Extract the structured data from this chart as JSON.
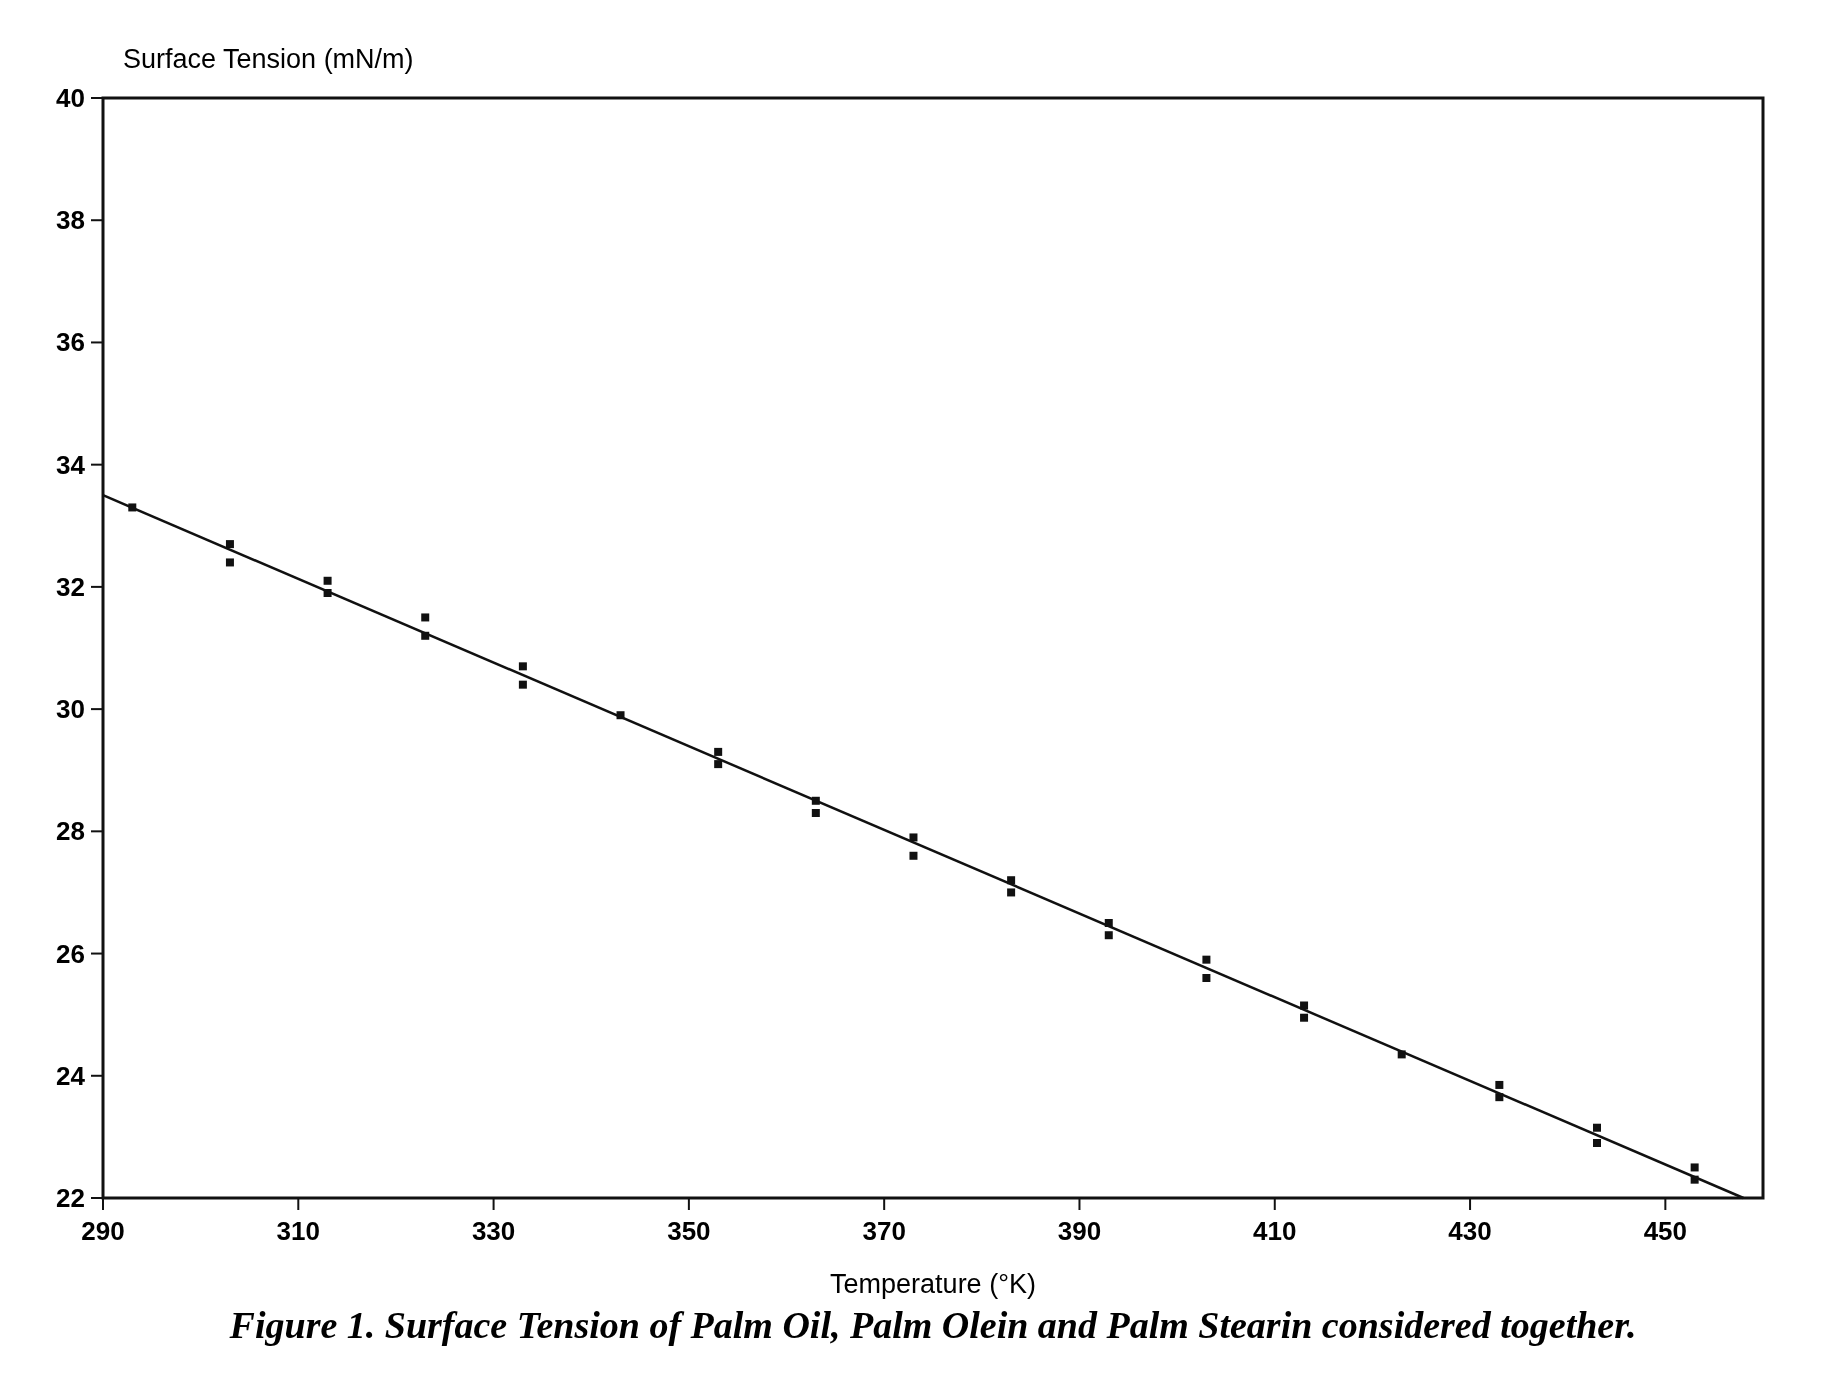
{
  "chart_data": {
    "type": "scatter",
    "xlabel": "Temperature (°K)",
    "ylabel": "Surface Tension (mN/m)",
    "annotations": [
      "Figure 1. Surface Tension of Palm Oil, Palm Olein and Palm Stearin considered together."
    ],
    "xlim": [
      290,
      460
    ],
    "xticks": [
      290,
      310,
      330,
      350,
      370,
      390,
      410,
      430,
      450
    ],
    "ylim": [
      22,
      40
    ],
    "yticks": [
      22,
      24,
      26,
      28,
      30,
      32,
      34,
      36,
      38,
      40
    ],
    "grid": false,
    "series": [
      {
        "color": "#111111",
        "marker": "square",
        "x": [
          293,
          303,
          303,
          313,
          313,
          323,
          323,
          333,
          333,
          343,
          353,
          353,
          363,
          363,
          373,
          373,
          383,
          383,
          393,
          393,
          403,
          403,
          413,
          413,
          423,
          433,
          433,
          443,
          443,
          453,
          453
        ],
        "values": [
          33.3,
          32.7,
          32.4,
          32.1,
          31.9,
          31.5,
          31.2,
          30.7,
          30.4,
          29.9,
          29.3,
          29.1,
          28.5,
          28.3,
          27.9,
          27.6,
          27.2,
          27.0,
          26.5,
          26.3,
          25.9,
          25.6,
          25.15,
          24.95,
          24.35,
          23.85,
          23.65,
          23.15,
          22.9,
          22.5,
          22.3
        ]
      },
      {
        "type": "line",
        "color": "#111111",
        "marker": "none",
        "x": [
          290,
          458
        ],
        "values": [
          33.5,
          22.0
        ],
        "line_style": "solid"
      }
    ]
  }
}
